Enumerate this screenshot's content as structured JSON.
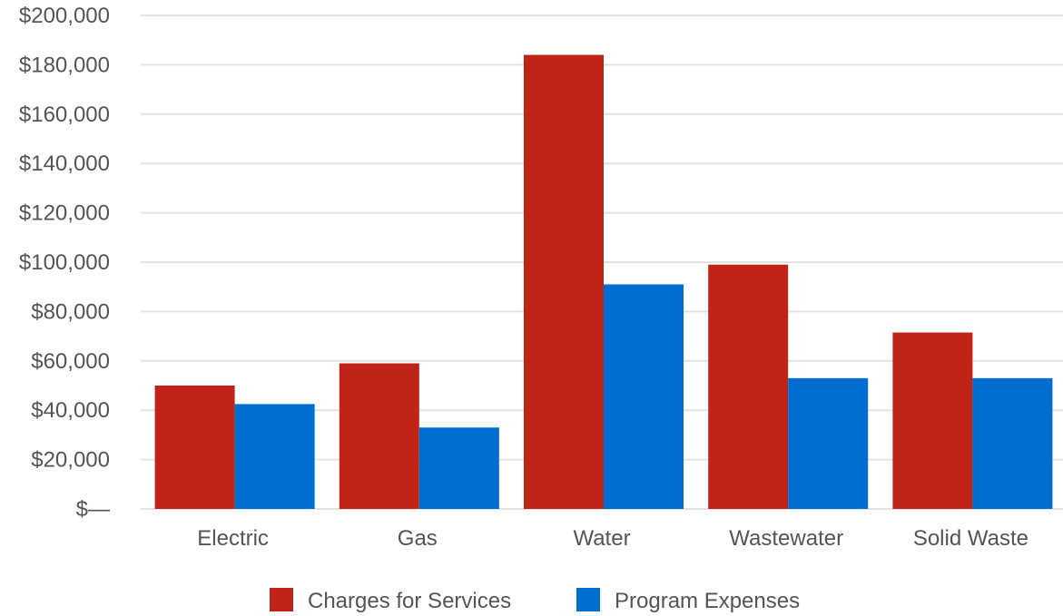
{
  "chart_data": {
    "type": "bar",
    "title": "",
    "xlabel": "",
    "ylabel": "",
    "categories": [
      "Electric",
      "Gas",
      "Water",
      "Wastewater",
      "Solid Waste"
    ],
    "series": [
      {
        "name": "Charges for Services",
        "color": "#c02317",
        "values": [
          50000,
          59000,
          184000,
          99000,
          71500
        ]
      },
      {
        "name": "Program Expenses",
        "color": "#006dd1",
        "values": [
          42500,
          33000,
          91000,
          53000,
          53000
        ]
      }
    ],
    "ylim": [
      0,
      200000
    ],
    "y_ticks": [
      0,
      20000,
      40000,
      60000,
      80000,
      100000,
      120000,
      140000,
      160000,
      180000,
      200000
    ],
    "y_tick_labels": [
      "$—",
      "$20,000",
      "$40,000",
      "$60,000",
      "$80,000",
      "$100,000",
      "$120,000",
      "$140,000",
      "$160,000",
      "$180,000",
      "$200,000"
    ],
    "grid": true,
    "legend_position": "bottom-center"
  }
}
